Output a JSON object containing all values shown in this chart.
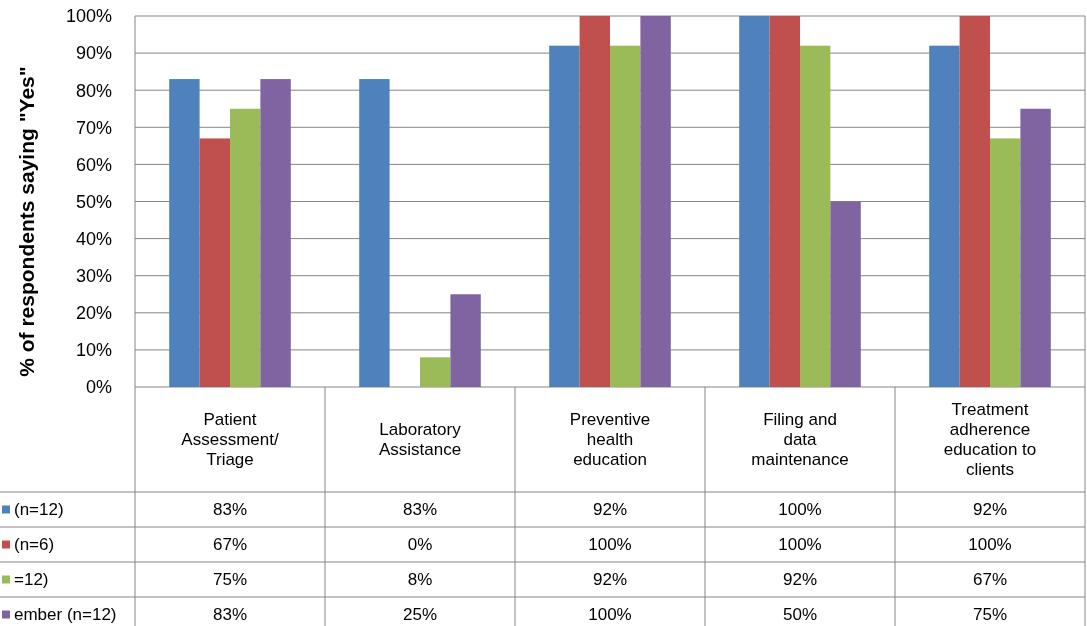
{
  "chart_data": {
    "type": "bar",
    "ylabel": "% of respondents saying \"Yes\"",
    "categories": [
      "Patient\nAssessment/\nTriage",
      "Laboratory\nAssistance",
      "Preventive\nhealth\neducation",
      "Filing and\ndata\nmaintenance",
      "Treatment\nadherence\neducation to\nclients"
    ],
    "series": [
      {
        "name": "(n=12)",
        "color": "#4f81bd",
        "values": [
          83,
          83,
          92,
          100,
          92
        ],
        "value_labels": [
          "83%",
          "83%",
          "92%",
          "100%",
          "92%"
        ]
      },
      {
        "name": "(n=6)",
        "color": "#c0504d",
        "values": [
          67,
          0,
          100,
          100,
          100
        ],
        "value_labels": [
          "67%",
          "0%",
          "100%",
          "100%",
          "100%"
        ]
      },
      {
        "name": "=12)",
        "color": "#9bbb59",
        "values": [
          75,
          8,
          92,
          92,
          67
        ],
        "value_labels": [
          "75%",
          "8%",
          "92%",
          "92%",
          "67%"
        ]
      },
      {
        "name": "ember (n=12)",
        "color": "#8064a2",
        "values": [
          83,
          25,
          100,
          50,
          75
        ],
        "value_labels": [
          "83%",
          "25%",
          "100%",
          "50%",
          "75%"
        ]
      }
    ],
    "ylim": [
      0,
      100
    ],
    "yticks": [
      {
        "value": 0,
        "label": "0%"
      },
      {
        "value": 10,
        "label": "10%"
      },
      {
        "value": 20,
        "label": "20%"
      },
      {
        "value": 30,
        "label": "30%"
      },
      {
        "value": 40,
        "label": "40%"
      },
      {
        "value": 50,
        "label": "50%"
      },
      {
        "value": 60,
        "label": "60%"
      },
      {
        "value": 70,
        "label": "70%"
      },
      {
        "value": 80,
        "label": "80%"
      },
      {
        "value": 90,
        "label": "90%"
      },
      {
        "value": 100,
        "label": "100%"
      }
    ],
    "grid": "y",
    "legend": "bottom left"
  }
}
